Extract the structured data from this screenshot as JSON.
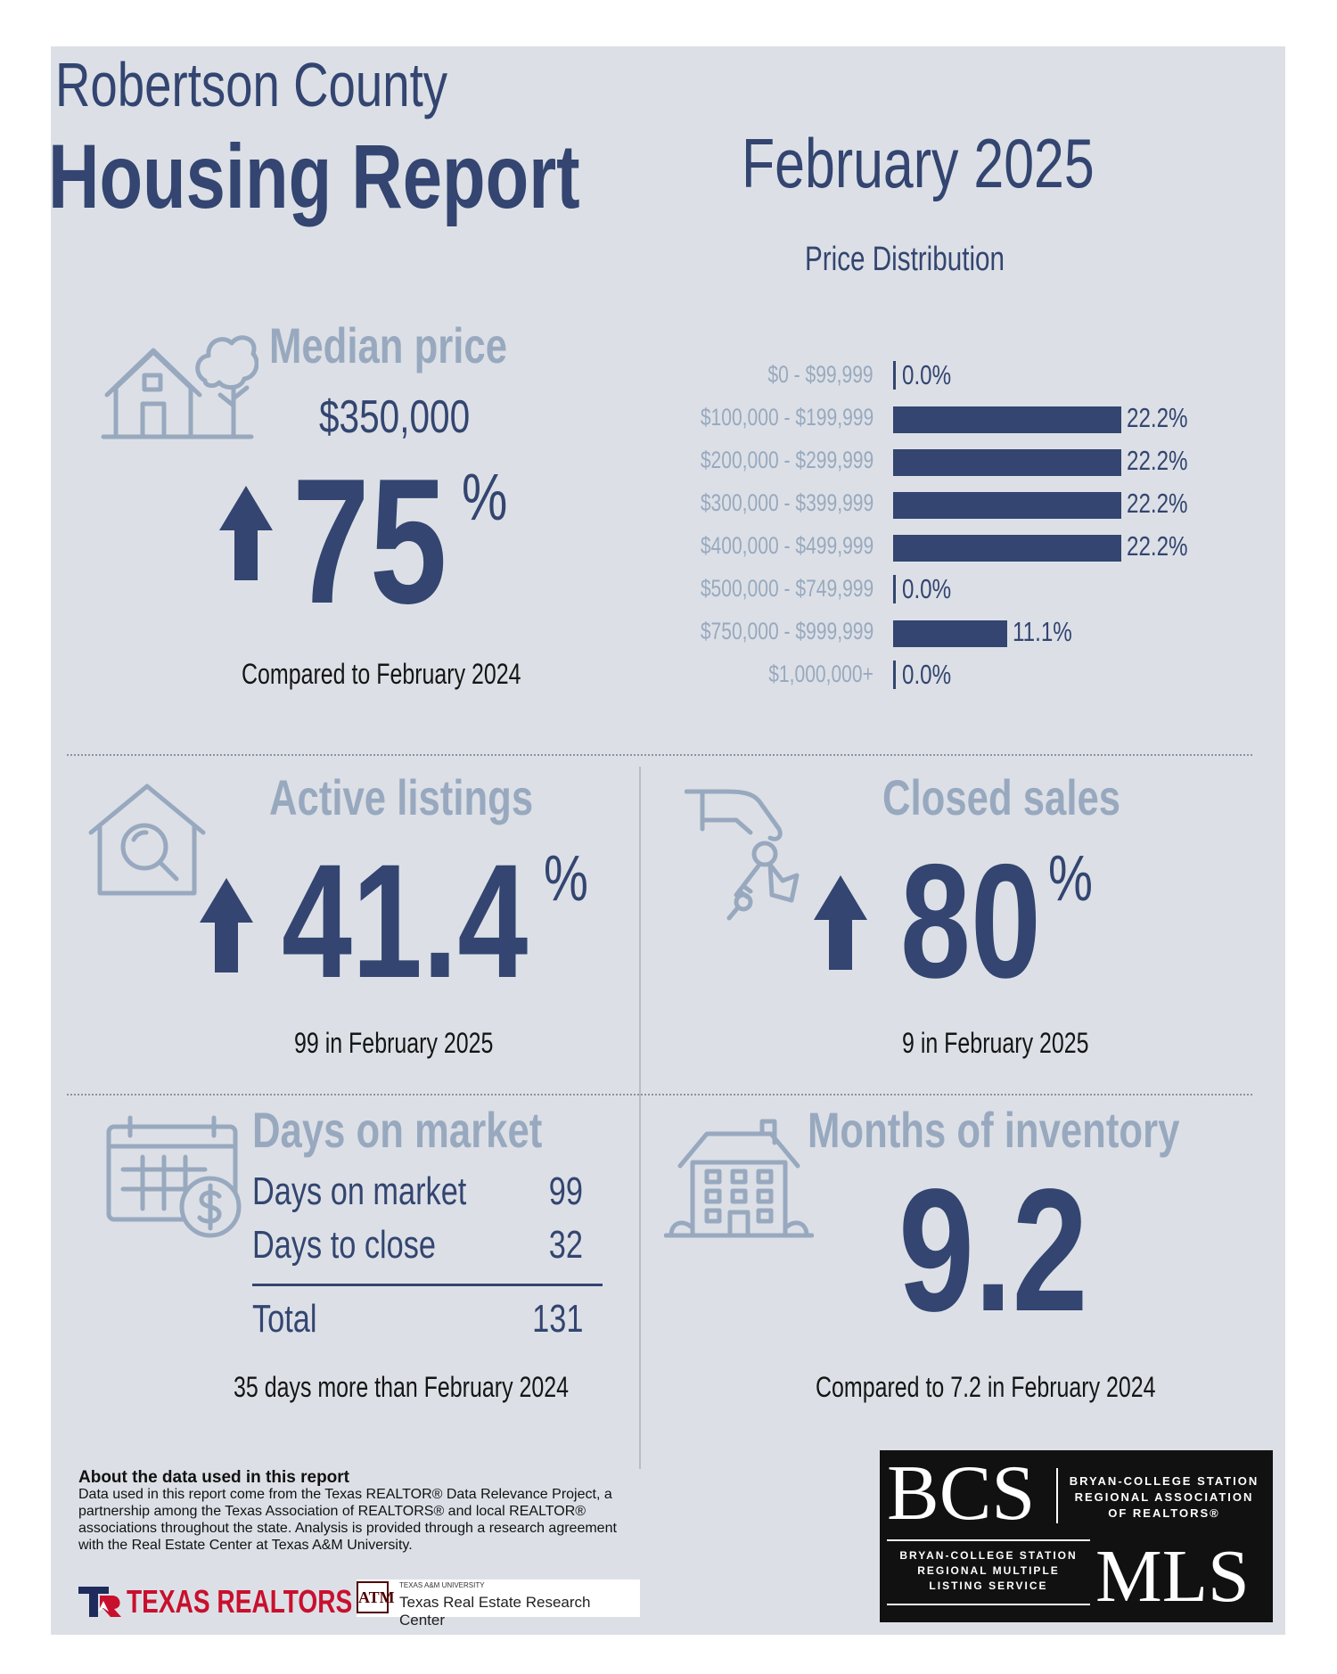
{
  "header": {
    "county": "Robertson County",
    "report": "Housing Report",
    "date": "February 2025"
  },
  "median_price": {
    "title": "Median price",
    "value": "$350,000",
    "change": "75",
    "unit": "%",
    "direction": "up",
    "caption": "Compared to February 2024"
  },
  "price_distribution": {
    "title": "Price Distribution",
    "bar_color": "#334570"
  },
  "chart_data": {
    "type": "bar",
    "orientation": "horizontal",
    "title": "Price Distribution",
    "categories": [
      "$0 - $99,999",
      "$100,000 - $199,999",
      "$200,000 - $299,999",
      "$300,000 - $399,999",
      "$400,000 - $499,999",
      "$500,000 - $749,999",
      "$750,000 - $999,999",
      "$1,000,000+"
    ],
    "values": [
      0.0,
      22.2,
      22.2,
      22.2,
      22.2,
      0.0,
      11.1,
      0.0
    ],
    "labels": [
      "0.0%",
      "22.2%",
      "22.2%",
      "22.2%",
      "22.2%",
      "0.0%",
      "11.1%",
      "0.0%"
    ],
    "xlim": [
      0,
      22.2
    ],
    "grid": false
  },
  "active_listings": {
    "title": "Active listings",
    "change": "41.4",
    "unit": "%",
    "direction": "up",
    "caption": "99 in February 2025"
  },
  "closed_sales": {
    "title": "Closed sales",
    "change": "80",
    "unit": "%",
    "direction": "up",
    "caption": "9 in February 2025"
  },
  "days_on_market": {
    "title": "Days on market",
    "rows": [
      {
        "label": "Days on market",
        "value": "99"
      },
      {
        "label": "Days to close",
        "value": "32"
      }
    ],
    "total_label": "Total",
    "total_value": "131",
    "caption": "35 days more than February 2024"
  },
  "months_inventory": {
    "title": "Months of inventory",
    "value": "9.2",
    "caption": "Compared to 7.2 in February 2024"
  },
  "about": {
    "title": "About the data used in this report",
    "body": "Data used in this report come from the Texas REALTOR® Data Relevance Project, a partnership among the Texas Association of REALTORS® and local REALTOR® associations throughout the state. Analysis is provided through a research agreement with the Real Estate Center at Texas A&M University."
  },
  "logos": {
    "texas_realtors": "TEXAS REALTORS",
    "tamu_small": "TEXAS A&M UNIVERSITY",
    "tamu_center": "Texas Real Estate Research Center",
    "bcs": "BCS",
    "bcs_assoc_1": "BRYAN-COLLEGE STATION",
    "bcs_assoc_2": "REGIONAL ASSOCIATION",
    "bcs_assoc_3": "OF REALTORS®",
    "mls_1": "BRYAN-COLLEGE STATION",
    "mls_2": "REGIONAL MULTIPLE",
    "mls_3": "LISTING SERVICE",
    "mls": "MLS"
  }
}
